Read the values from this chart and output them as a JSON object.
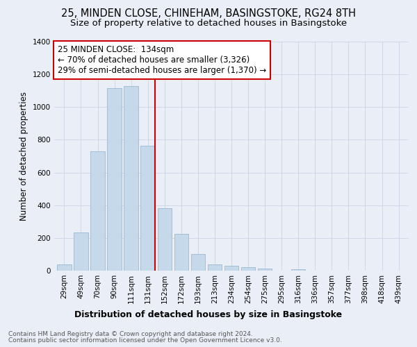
{
  "title": "25, MINDEN CLOSE, CHINEHAM, BASINGSTOKE, RG24 8TH",
  "subtitle": "Size of property relative to detached houses in Basingstoke",
  "xlabel": "Distribution of detached houses by size in Basingstoke",
  "ylabel": "Number of detached properties",
  "categories": [
    "29sqm",
    "49sqm",
    "70sqm",
    "90sqm",
    "111sqm",
    "131sqm",
    "152sqm",
    "172sqm",
    "193sqm",
    "213sqm",
    "234sqm",
    "254sqm",
    "275sqm",
    "295sqm",
    "316sqm",
    "336sqm",
    "357sqm",
    "377sqm",
    "398sqm",
    "418sqm",
    "439sqm"
  ],
  "values": [
    38,
    235,
    728,
    1115,
    1128,
    762,
    380,
    225,
    103,
    38,
    28,
    22,
    12,
    0,
    10,
    0,
    0,
    0,
    0,
    0,
    0
  ],
  "bar_color": "#c6d9ea",
  "bar_edgecolor": "#9ab8d0",
  "vline_x": 5.425,
  "vline_color": "#cc0000",
  "annotation_line1": "25 MINDEN CLOSE:  134sqm",
  "annotation_line2": "← 70% of detached houses are smaller (3,326)",
  "annotation_line3": "29% of semi-detached houses are larger (1,370) →",
  "annotation_box_color": "#ffffff",
  "annotation_box_edgecolor": "#cc0000",
  "ylim": [
    0,
    1400
  ],
  "yticks": [
    0,
    200,
    400,
    600,
    800,
    1000,
    1200,
    1400
  ],
  "bg_color": "#eaeff7",
  "grid_color": "#d0d8e8",
  "footer1": "Contains HM Land Registry data © Crown copyright and database right 2024.",
  "footer2": "Contains public sector information licensed under the Open Government Licence v3.0.",
  "title_fontsize": 10.5,
  "subtitle_fontsize": 9.5,
  "xlabel_fontsize": 9,
  "ylabel_fontsize": 8.5,
  "tick_fontsize": 7.5,
  "annotation_fontsize": 8.5,
  "footer_fontsize": 6.5
}
